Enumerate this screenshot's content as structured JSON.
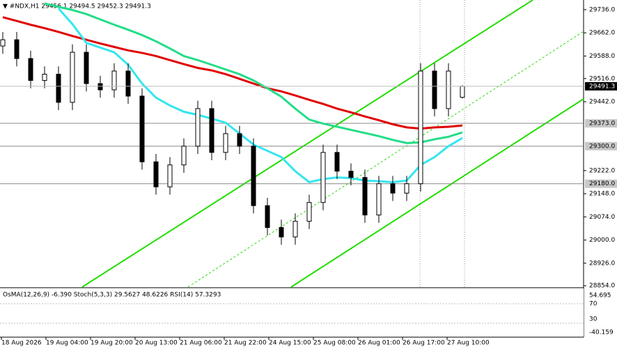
{
  "chart_data": {
    "type": "candlestick",
    "title": "▼ #NDX,H1  29456.1 29494.5 29452.3 29491.3",
    "open": [
      29620,
      29640,
      29580,
      29510,
      29530,
      29440,
      29600,
      29500,
      29480,
      29540,
      29460,
      29250,
      29170,
      29240,
      29300,
      29420,
      29280,
      29340,
      29300,
      29110,
      29040,
      29010,
      29060,
      29120,
      29280,
      29220,
      29200,
      29080,
      29180,
      29150,
      29180,
      29540,
      29420,
      29456.1
    ],
    "high": [
      29665,
      29665,
      29605,
      29555,
      29555,
      29625,
      29625,
      29525,
      29565,
      29565,
      29485,
      29275,
      29265,
      29325,
      29445,
      29445,
      29365,
      29365,
      29325,
      29135,
      29065,
      29085,
      29145,
      29305,
      29305,
      29245,
      29225,
      29205,
      29205,
      29205,
      29565,
      29565,
      29565,
      29494.5
    ],
    "low": [
      29595,
      29555,
      29485,
      29485,
      29415,
      29415,
      29475,
      29455,
      29455,
      29435,
      29225,
      29145,
      29145,
      29215,
      29275,
      29255,
      29255,
      29275,
      29085,
      29015,
      28985,
      28985,
      29035,
      29095,
      29195,
      29175,
      29055,
      29055,
      29125,
      29125,
      29155,
      29395,
      29395,
      29452.3
    ],
    "close": [
      29640,
      29580,
      29510,
      29530,
      29440,
      29600,
      29500,
      29480,
      29540,
      29460,
      29250,
      29170,
      29240,
      29300,
      29420,
      29280,
      29340,
      29300,
      29110,
      29040,
      29010,
      29060,
      29120,
      29280,
      29220,
      29200,
      29080,
      29180,
      29150,
      29180,
      29540,
      29420,
      29540,
      29491.3
    ],
    "series": [
      {
        "color": "#e00000",
        "values": [
          29712,
          29700,
          29688,
          29677,
          29665,
          29652,
          29640,
          29628,
          29617,
          29606,
          29598,
          29588,
          29575,
          29562,
          29550,
          29542,
          29530,
          29515,
          29500,
          29485,
          29475,
          29462,
          29448,
          29435,
          29420,
          29408,
          29395,
          29383,
          29370,
          29360,
          29356,
          29360,
          29362,
          29366
        ]
      },
      {
        "color": "#22dd88",
        "values": [
          null,
          null,
          null,
          29756,
          29745,
          29735,
          29722,
          29705,
          29688,
          29672,
          29655,
          29635,
          29612,
          29588,
          29575,
          29560,
          29545,
          29530,
          29510,
          29485,
          29458,
          29420,
          29385,
          29372,
          29362,
          29352,
          29342,
          29332,
          29320,
          29310,
          29312,
          29322,
          29330,
          29344
        ]
      },
      {
        "color": "#33e6f0",
        "values": [
          null,
          null,
          null,
          null,
          29740,
          29690,
          29630,
          29615,
          29600,
          29560,
          29500,
          29455,
          29430,
          29410,
          29400,
          29388,
          29375,
          29340,
          29305,
          29285,
          29265,
          29220,
          29185,
          29195,
          29200,
          29198,
          29190,
          29188,
          29185,
          29190,
          29240,
          29265,
          29300,
          29326
        ]
      }
    ],
    "ylim": [
      28850,
      29767
    ],
    "yticks": [
      {
        "value": 29736,
        "label": "29736.0"
      },
      {
        "value": 29662,
        "label": "29662.0"
      },
      {
        "value": 29588,
        "label": "29588.0"
      },
      {
        "value": 29516,
        "label": "29516.0"
      },
      {
        "value": 29442,
        "label": "29442.0"
      },
      {
        "value": 29222,
        "label": "29222.0"
      },
      {
        "value": 29148,
        "label": "29148.0"
      },
      {
        "value": 29074,
        "label": "29074.0"
      },
      {
        "value": 29000,
        "label": "29000.0"
      },
      {
        "value": 28926,
        "label": "28926.0"
      },
      {
        "value": 28854,
        "label": "28854.0"
      }
    ],
    "levels": [
      {
        "value": 29373,
        "label": "29373.0"
      },
      {
        "value": 29300,
        "label": "29300.0"
      },
      {
        "value": 29180,
        "label": "29180.0"
      }
    ],
    "last_price": {
      "value": 29491.3,
      "label": "29491.3"
    },
    "time_labels": [
      "18 Aug 2026",
      "19 Aug 04:00",
      "19 Aug 20:00",
      "20 Aug 13:00",
      "21 Aug 06:00",
      "21 Aug 22:00",
      "24 Aug 15:00",
      "25 Aug 08:00",
      "26 Aug 01:00",
      "26 Aug 17:00",
      "27 Aug 10:00"
    ],
    "indicator": {
      "title": "OsMA(12,26,9) -6.390   Stoch(5,3,3) 29.5627 48.6226   RSI(14) 57.3293",
      "labels": [
        "54.695",
        "70",
        "30",
        "-40.159"
      ]
    }
  }
}
